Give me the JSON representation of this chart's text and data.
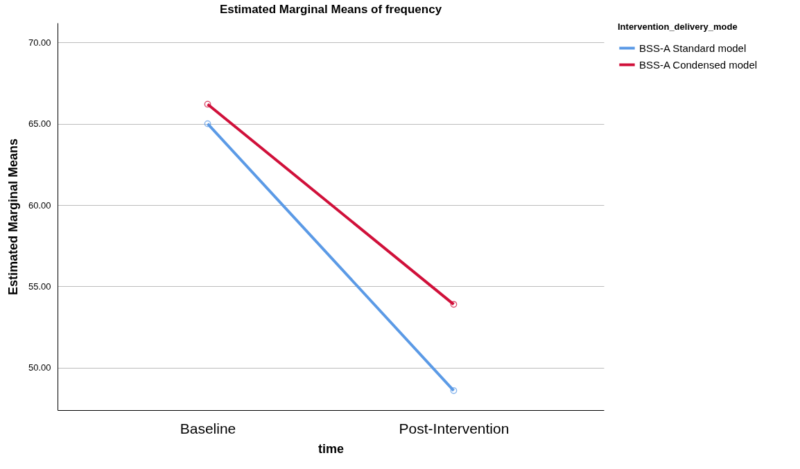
{
  "chart_data": {
    "type": "line",
    "title": "Estimated Marginal Means of frequency",
    "xlabel": "time",
    "ylabel": "Estimated Marginal Means",
    "legend_title": "Intervention_delivery_mode",
    "categories": [
      "Baseline",
      "Post-Intervention"
    ],
    "series": [
      {
        "name": "BSS-A Standard model",
        "color": "#5b9ae6",
        "values": [
          65.0,
          48.6
        ]
      },
      {
        "name": "BSS-A Condensed model",
        "color": "#d0103a",
        "values": [
          66.2,
          53.9
        ]
      }
    ],
    "ylim": [
      47.4,
      71.2
    ],
    "yticks": [
      {
        "value": 50,
        "label": "50.00"
      },
      {
        "value": 55,
        "label": "55.00"
      },
      {
        "value": 60,
        "label": "60.00"
      },
      {
        "value": 65,
        "label": "65.00"
      },
      {
        "value": 70,
        "label": "70.00"
      }
    ],
    "grid": "y",
    "legend": "top right",
    "marker": "circle",
    "line_style": "solid"
  }
}
